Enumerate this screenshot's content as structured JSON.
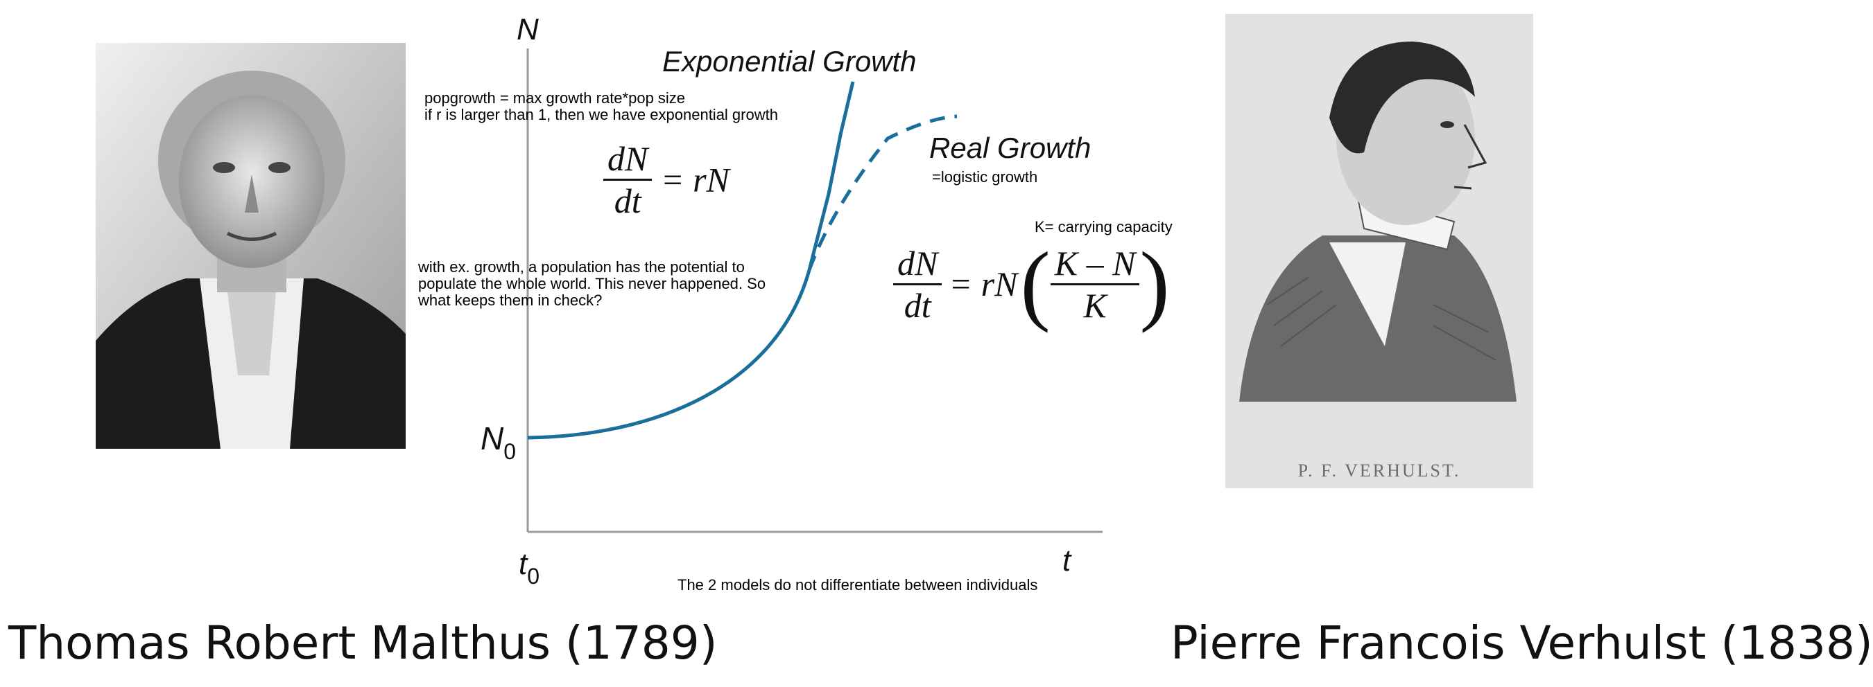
{
  "left_person": {
    "caption": "Thomas Robert Malthus (1789)"
  },
  "right_person": {
    "caption": "Pierre Francois Verhulst (1838)",
    "engraving_label": "P. F. VERHULST."
  },
  "graph": {
    "y_axis_label": "N",
    "x_axis_label": "t",
    "y_origin_label": "N",
    "y_origin_sub": "0",
    "x_origin_label": "t",
    "x_origin_sub": "0",
    "curve_exponential_label": "Exponential Growth",
    "curve_real_label": "Real Growth",
    "colors": {
      "curve": "#1a6e9a",
      "axis": "#999999"
    }
  },
  "notes": {
    "popgrowth": "popgrowth = max growth rate*pop size\nif r is larger than 1, then we have exponential growth",
    "potential": "with ex. growth, a population has the potential to\npopulate the whole world. This never happened. So\nwhat keeps them in check?",
    "logistic": "=logistic growth",
    "carrying": "K= carrying capacity",
    "models": "The 2 models do not differentiate between individuals"
  },
  "formulas": {
    "exp": {
      "num": "dN",
      "den": "dt",
      "rhs": "= rN"
    },
    "logistic": {
      "num": "dN",
      "den": "dt",
      "mid": "= rN",
      "inner_num": "K – N",
      "inner_den": "K"
    }
  }
}
